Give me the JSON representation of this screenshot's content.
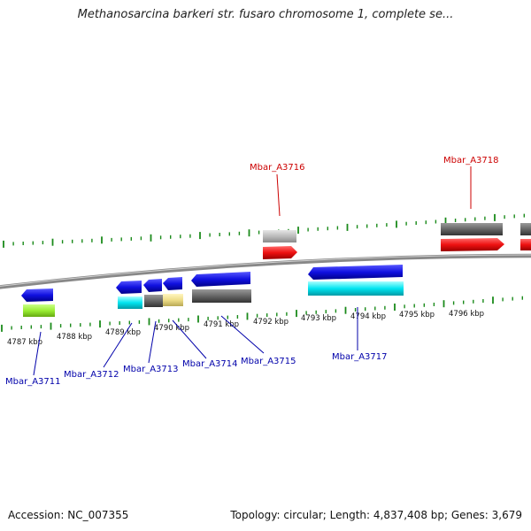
{
  "title": "Methanosarcina barkeri str. fusaro chromosome 1, complete se...",
  "accession": "Accession: NC_007355",
  "summary": "Topology: circular; Length: 4,837,408 bp; Genes: 3,679",
  "colors": {
    "forward_label": "#cc0000",
    "reverse_label": "#0000aa",
    "ticks": "#1a8a1a",
    "backbone": "#888888",
    "cds_blue": "#1010e0",
    "cds_red": "#ee1111",
    "cds_cyan": "#00e5f0",
    "cds_lime": "#99ee33",
    "cds_grey": "#666666",
    "cds_lightgrey": "#bbbbbb",
    "cds_khaki": "#eedd88"
  },
  "scale_labels": [
    "4787 kbp",
    "4788 kbp",
    "4789 kbp",
    "4790 kbp",
    "4791 kbp",
    "4792 kbp",
    "4793 kbp",
    "4794 kbp",
    "4795 kbp",
    "4796 kbp"
  ],
  "gene_labels": [
    "Mbar_A3711",
    "Mbar_A3712",
    "Mbar_A3713",
    "Mbar_A3714",
    "Mbar_A3715",
    "Mbar_A3716",
    "Mbar_A3717",
    "Mbar_A3718"
  ]
}
